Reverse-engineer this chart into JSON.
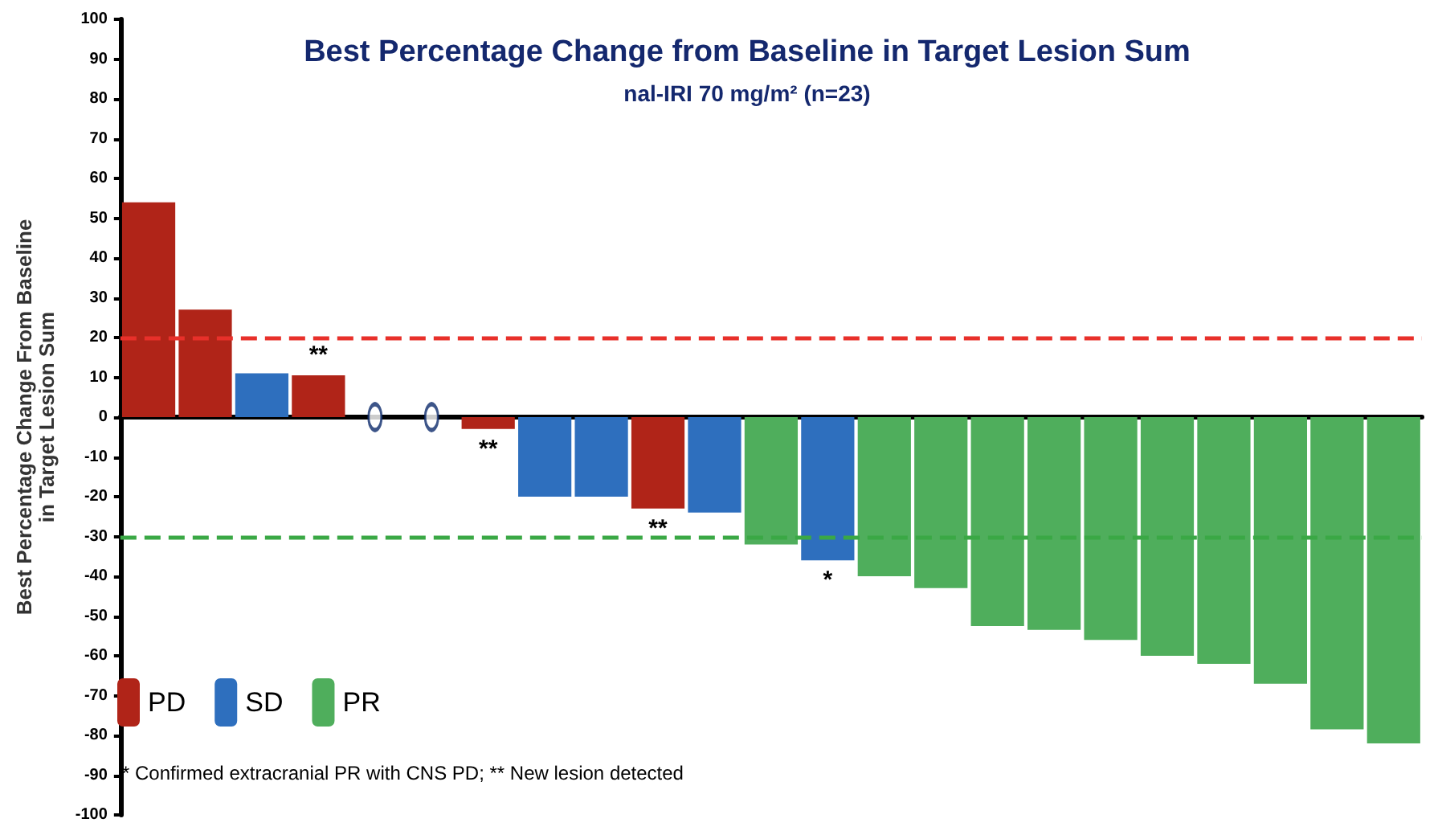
{
  "chart_data": {
    "type": "bar",
    "title": "Best Percentage Change from Baseline in Target Lesion Sum",
    "subtitle": "nal-IRI 70 mg/m² (n=23)",
    "ylabel": "Best Percentage Change From Baseline\nin Target Lesion Sum",
    "categories": [
      null,
      null,
      null,
      null,
      null,
      null,
      null,
      null,
      null,
      null,
      null,
      null,
      null,
      null,
      null,
      null,
      null,
      null,
      null,
      null,
      null,
      null,
      null
    ],
    "stacked": true,
    "series": [
      {
        "name": "PD",
        "color": "#b02418",
        "values": [
          54,
          27,
          null,
          10.5,
          null,
          null,
          -3,
          null,
          null,
          -23,
          null,
          null,
          null,
          null,
          null,
          null,
          null,
          null,
          null,
          null,
          null,
          null,
          null
        ],
        "value_labels": [
          null,
          null,
          null,
          "**",
          null,
          null,
          "**",
          null,
          null,
          "**",
          null,
          null,
          null,
          null,
          null,
          null,
          null,
          null,
          null,
          null,
          null,
          null,
          null
        ]
      },
      {
        "name": "SD",
        "color": "#2e6fbe",
        "values": [
          null,
          null,
          11,
          null,
          null,
          null,
          null,
          -20,
          -20,
          null,
          -24,
          null,
          -36,
          null,
          null,
          null,
          null,
          null,
          null,
          null,
          null,
          null,
          null
        ],
        "value_labels": [
          null,
          null,
          null,
          null,
          null,
          null,
          null,
          null,
          null,
          null,
          null,
          null,
          "*",
          null,
          null,
          null,
          null,
          null,
          null,
          null,
          null,
          null,
          null
        ]
      },
      {
        "name": "PR",
        "color": "#4fae5c",
        "values": [
          null,
          null,
          null,
          null,
          null,
          null,
          null,
          null,
          null,
          null,
          null,
          -32,
          null,
          -40,
          -43,
          -52.5,
          -53.5,
          -56,
          -60,
          -62,
          -67,
          -78.5,
          -82
        ]
      },
      {
        "type": "scatter",
        "color": "#0d2a6b",
        "marker": "circle",
        "values": [
          null,
          null,
          null,
          null,
          0,
          0,
          null,
          null,
          null,
          null,
          null,
          null,
          null,
          null,
          null,
          null,
          null,
          null,
          null,
          null,
          null,
          null,
          null
        ]
      }
    ],
    "ylim": [
      -100,
      100
    ],
    "yticks": [
      -100,
      -90,
      -80,
      -70,
      -60,
      -50,
      -40,
      -30,
      -20,
      -10,
      0,
      10,
      20,
      30,
      40,
      50,
      60,
      70,
      80,
      90,
      100
    ],
    "ref_lines": [
      {
        "axis": "y",
        "value": 20,
        "color": "#e8302a",
        "line_style": "dashed"
      },
      {
        "axis": "y",
        "value": -30,
        "color": "#3aa845",
        "line_style": "dashed"
      }
    ],
    "legend": "bottom left",
    "grid": false,
    "annotations": [
      "* Confirmed extracranial PR with CNS PD; ** New lesion detected"
    ]
  }
}
